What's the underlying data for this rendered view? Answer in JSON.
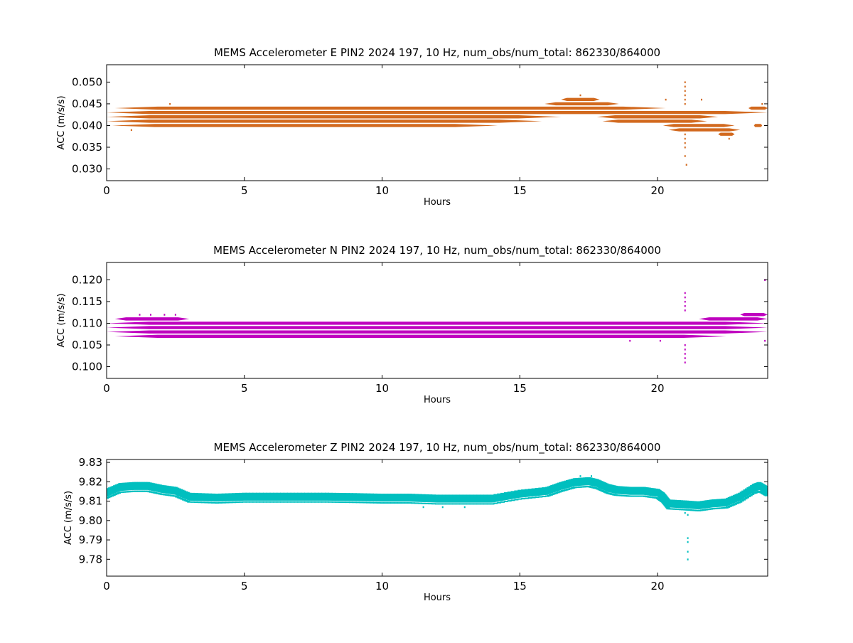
{
  "chart_data": [
    {
      "type": "scatter",
      "title": "MEMS Accelerometer E PIN2 2024 197, 10 Hz, num_obs/num_total: 862330/864000",
      "xlabel": "Hours",
      "ylabel": "ACC (m/s/s)",
      "xlim": [
        0,
        24
      ],
      "ylim": [
        0.0273,
        0.054
      ],
      "xticks": [
        0,
        5,
        10,
        15,
        20
      ],
      "xtick_labels": [
        "0",
        "5",
        "10",
        "15",
        "20"
      ],
      "yticks": [
        0.03,
        0.035,
        0.04,
        0.045,
        0.05
      ],
      "ytick_labels": [
        "0.030",
        "0.035",
        "0.040",
        "0.045",
        "0.050"
      ],
      "color": "#d2691e",
      "grid": false,
      "bands": [
        {
          "y": 0.041,
          "x": [
            [
              0,
              15.8
            ],
            [
              18.0,
              21.8
            ]
          ]
        },
        {
          "y": 0.042,
          "x": [
            [
              0,
              16.5
            ],
            [
              17.8,
              22.2
            ]
          ]
        },
        {
          "y": 0.043,
          "x": [
            [
              0,
              24
            ]
          ]
        },
        {
          "y": 0.044,
          "x": [
            [
              0.3,
              20.3
            ],
            [
              23.3,
              24
            ]
          ]
        },
        {
          "y": 0.04,
          "x": [
            [
              0.2,
              14.2
            ],
            [
              20.2,
              22.8
            ],
            [
              23.5,
              23.8
            ]
          ]
        },
        {
          "y": 0.045,
          "x": [
            [
              15.9,
              18.6
            ]
          ]
        },
        {
          "y": 0.046,
          "x": [
            [
              16.5,
              17.9
            ]
          ]
        },
        {
          "y": 0.039,
          "x": [
            [
              20.4,
              23.0
            ]
          ]
        },
        {
          "y": 0.038,
          "x": [
            [
              22.2,
              22.8
            ]
          ]
        }
      ],
      "points": [
        {
          "x": 0.9,
          "y": 0.039
        },
        {
          "x": 2.3,
          "y": 0.045
        },
        {
          "x": 17.2,
          "y": 0.047
        },
        {
          "x": 20.3,
          "y": 0.046
        },
        {
          "x": 21.6,
          "y": 0.046
        },
        {
          "x": 22.6,
          "y": 0.037
        },
        {
          "x": 23.8,
          "y": 0.045
        },
        {
          "x": 21.0,
          "y": 0.05
        },
        {
          "x": 21.0,
          "y": 0.049
        },
        {
          "x": 21.0,
          "y": 0.048
        },
        {
          "x": 21.0,
          "y": 0.047
        },
        {
          "x": 21.0,
          "y": 0.046
        },
        {
          "x": 21.0,
          "y": 0.045
        },
        {
          "x": 21.0,
          "y": 0.038
        },
        {
          "x": 21.0,
          "y": 0.037
        },
        {
          "x": 21.0,
          "y": 0.036
        },
        {
          "x": 21.0,
          "y": 0.035
        },
        {
          "x": 21.0,
          "y": 0.033
        },
        {
          "x": 21.05,
          "y": 0.031
        }
      ]
    },
    {
      "type": "scatter",
      "title": "MEMS Accelerometer N PIN2 2024 197, 10 Hz, num_obs/num_total: 862330/864000",
      "xlabel": "Hours",
      "ylabel": "ACC (m/s/s)",
      "xlim": [
        0,
        24
      ],
      "ylim": [
        0.0973,
        0.124
      ],
      "xticks": [
        0,
        5,
        10,
        15,
        20
      ],
      "xtick_labels": [
        "0",
        "5",
        "10",
        "15",
        "20"
      ],
      "yticks": [
        0.1,
        0.105,
        0.11,
        0.115,
        0.12
      ],
      "ytick_labels": [
        "0.100",
        "0.105",
        "0.110",
        "0.115",
        "0.120"
      ],
      "color": "#bf00bf",
      "grid": false,
      "bands": [
        {
          "y": 0.108,
          "x": [
            [
              0,
              24
            ]
          ]
        },
        {
          "y": 0.109,
          "x": [
            [
              0,
              24
            ]
          ]
        },
        {
          "y": 0.11,
          "x": [
            [
              0,
              24
            ]
          ]
        },
        {
          "y": 0.107,
          "x": [
            [
              0.3,
              22.5
            ]
          ]
        },
        {
          "y": 0.111,
          "x": [
            [
              0.3,
              3.0
            ],
            [
              21.5,
              24
            ]
          ]
        },
        {
          "y": 0.112,
          "x": [
            [
              23.0,
              24
            ]
          ]
        }
      ],
      "points": [
        {
          "x": 1.2,
          "y": 0.112
        },
        {
          "x": 1.6,
          "y": 0.112
        },
        {
          "x": 2.1,
          "y": 0.112
        },
        {
          "x": 2.5,
          "y": 0.112
        },
        {
          "x": 19.0,
          "y": 0.106
        },
        {
          "x": 20.1,
          "y": 0.106
        },
        {
          "x": 23.9,
          "y": 0.12
        },
        {
          "x": 23.9,
          "y": 0.106
        },
        {
          "x": 21.0,
          "y": 0.117
        },
        {
          "x": 21.0,
          "y": 0.116
        },
        {
          "x": 21.0,
          "y": 0.115
        },
        {
          "x": 21.0,
          "y": 0.114
        },
        {
          "x": 21.0,
          "y": 0.113
        },
        {
          "x": 21.0,
          "y": 0.105
        },
        {
          "x": 21.0,
          "y": 0.104
        },
        {
          "x": 21.0,
          "y": 0.103
        },
        {
          "x": 21.0,
          "y": 0.102
        },
        {
          "x": 21.0,
          "y": 0.101
        }
      ]
    },
    {
      "type": "scatter",
      "title": "MEMS Accelerometer Z PIN2 2024 197, 10 Hz, num_obs/num_total: 862330/864000",
      "xlabel": "Hours",
      "ylabel": "ACC (m/s/s)",
      "xlim": [
        0,
        24
      ],
      "ylim": [
        9.7713,
        9.8315
      ],
      "xticks": [
        0,
        5,
        10,
        15,
        20
      ],
      "xtick_labels": [
        "0",
        "5",
        "10",
        "15",
        "20"
      ],
      "yticks": [
        9.78,
        9.79,
        9.8,
        9.81,
        9.82,
        9.83
      ],
      "ytick_labels": [
        "9.78",
        "9.79",
        "9.80",
        "9.81",
        "9.82",
        "9.83"
      ],
      "color": "#00bfbf",
      "grid": false,
      "trend": {
        "x": [
          0,
          0.5,
          1.0,
          1.5,
          2.0,
          2.5,
          3.0,
          4.0,
          5.0,
          6.0,
          7.0,
          8.0,
          9.0,
          10.0,
          11.0,
          12.0,
          13.0,
          14.0,
          15.0,
          16.0,
          16.5,
          17.0,
          17.5,
          17.8,
          18.2,
          18.5,
          19.0,
          19.5,
          20.0,
          20.2,
          20.4,
          21.0,
          21.5,
          22.0,
          22.5,
          23.0,
          23.5,
          23.7,
          24.0
        ],
        "y": [
          9.814,
          9.817,
          9.8175,
          9.8175,
          9.816,
          9.815,
          9.812,
          9.8115,
          9.812,
          9.812,
          9.812,
          9.812,
          9.8118,
          9.8115,
          9.8115,
          9.811,
          9.811,
          9.811,
          9.8135,
          9.815,
          9.8175,
          9.8195,
          9.82,
          9.819,
          9.8165,
          9.8155,
          9.815,
          9.815,
          9.814,
          9.812,
          9.8085,
          9.808,
          9.8075,
          9.8085,
          9.809,
          9.812,
          9.8165,
          9.8175,
          9.815
        ],
        "spread": 0.0035
      },
      "points": [
        {
          "x": 21.1,
          "y": 9.791
        },
        {
          "x": 21.1,
          "y": 9.789
        },
        {
          "x": 21.1,
          "y": 9.784
        },
        {
          "x": 21.1,
          "y": 9.78
        },
        {
          "x": 21.1,
          "y": 9.803
        },
        {
          "x": 21.0,
          "y": 9.804
        },
        {
          "x": 11.5,
          "y": 9.807
        },
        {
          "x": 12.2,
          "y": 9.807
        },
        {
          "x": 13.0,
          "y": 9.807
        },
        {
          "x": 17.2,
          "y": 9.823
        },
        {
          "x": 17.6,
          "y": 9.823
        }
      ]
    }
  ]
}
